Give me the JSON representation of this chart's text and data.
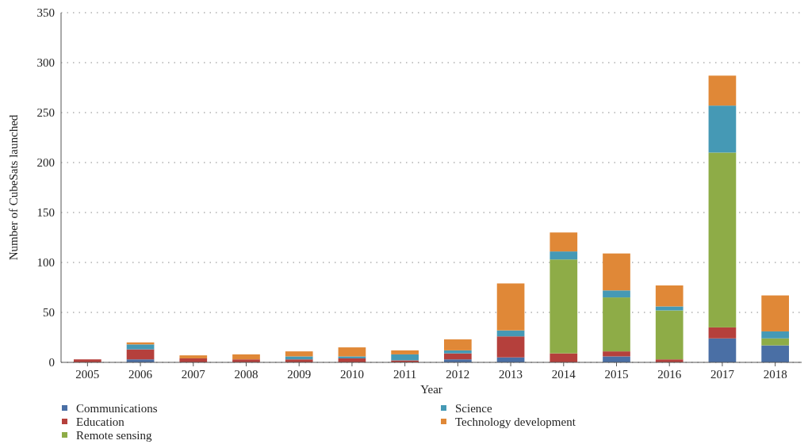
{
  "chart_data": {
    "type": "bar",
    "stacked": true,
    "xlabel": "Year",
    "ylabel": "Number of CubeSats launched",
    "categories": [
      "2005",
      "2006",
      "2007",
      "2008",
      "2009",
      "2010",
      "2011",
      "2012",
      "2013",
      "2014",
      "2015",
      "2016",
      "2017",
      "2018"
    ],
    "series": [
      {
        "name": "Communications",
        "color": "#4a6fa5",
        "values": [
          0,
          3,
          0,
          0,
          0,
          0,
          0,
          3,
          5,
          0,
          6,
          0,
          24,
          17
        ]
      },
      {
        "name": "Education",
        "color": "#b5403c",
        "values": [
          3,
          10,
          4,
          3,
          3,
          4,
          2,
          6,
          21,
          9,
          5,
          3,
          11,
          0
        ]
      },
      {
        "name": "Remote sensing",
        "color": "#8eac47",
        "values": [
          0,
          0,
          0,
          0,
          0,
          0,
          0,
          0,
          0,
          94,
          54,
          49,
          175,
          7
        ]
      },
      {
        "name": "Science",
        "color": "#4599b5",
        "values": [
          0,
          5,
          0,
          0,
          3,
          2,
          6,
          3,
          6,
          8,
          7,
          4,
          47,
          7
        ]
      },
      {
        "name": "Technology development",
        "color": "#e08837",
        "values": [
          0,
          2,
          3,
          5,
          5,
          9,
          4,
          11,
          47,
          19,
          37,
          21,
          30,
          36
        ]
      }
    ],
    "ylim": [
      0,
      350
    ],
    "yticks": [
      0,
      50,
      100,
      150,
      200,
      250,
      300,
      350
    ],
    "grid": "y",
    "legend": "bottom"
  }
}
